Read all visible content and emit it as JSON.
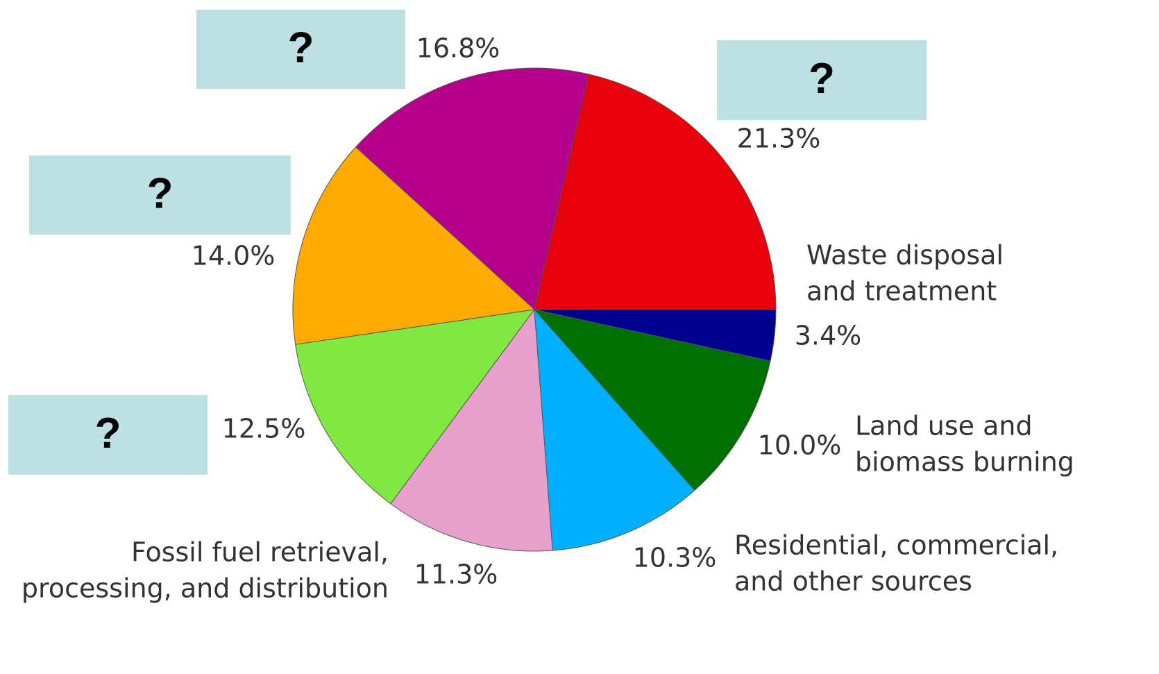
{
  "chart_data": {
    "type": "pie",
    "categories": [
      [
        "?"
      ],
      [
        "?"
      ],
      [
        "?"
      ],
      [
        "?"
      ],
      [
        "Fossil fuel retrieval,",
        "processing, and distribution"
      ],
      [
        "Residential, commercial,",
        "and other sources"
      ],
      [
        "Land use and",
        "biomass burning"
      ],
      [
        "Waste disposal",
        "and treatment"
      ]
    ],
    "values": [
      21.3,
      16.8,
      14.0,
      12.5,
      11.3,
      10.3,
      10.0,
      3.4
    ],
    "value_labels": [
      "21.3%",
      "16.8%",
      "14.0%",
      "12.5%",
      "11.3%",
      "10.3%",
      "10.0%",
      "3.4%"
    ],
    "colors": [
      "#e8000d",
      "#b5008c",
      "#ffaa00",
      "#80e840",
      "#e8a0cc",
      "#00b0ff",
      "#007000",
      "#000090"
    ]
  }
}
